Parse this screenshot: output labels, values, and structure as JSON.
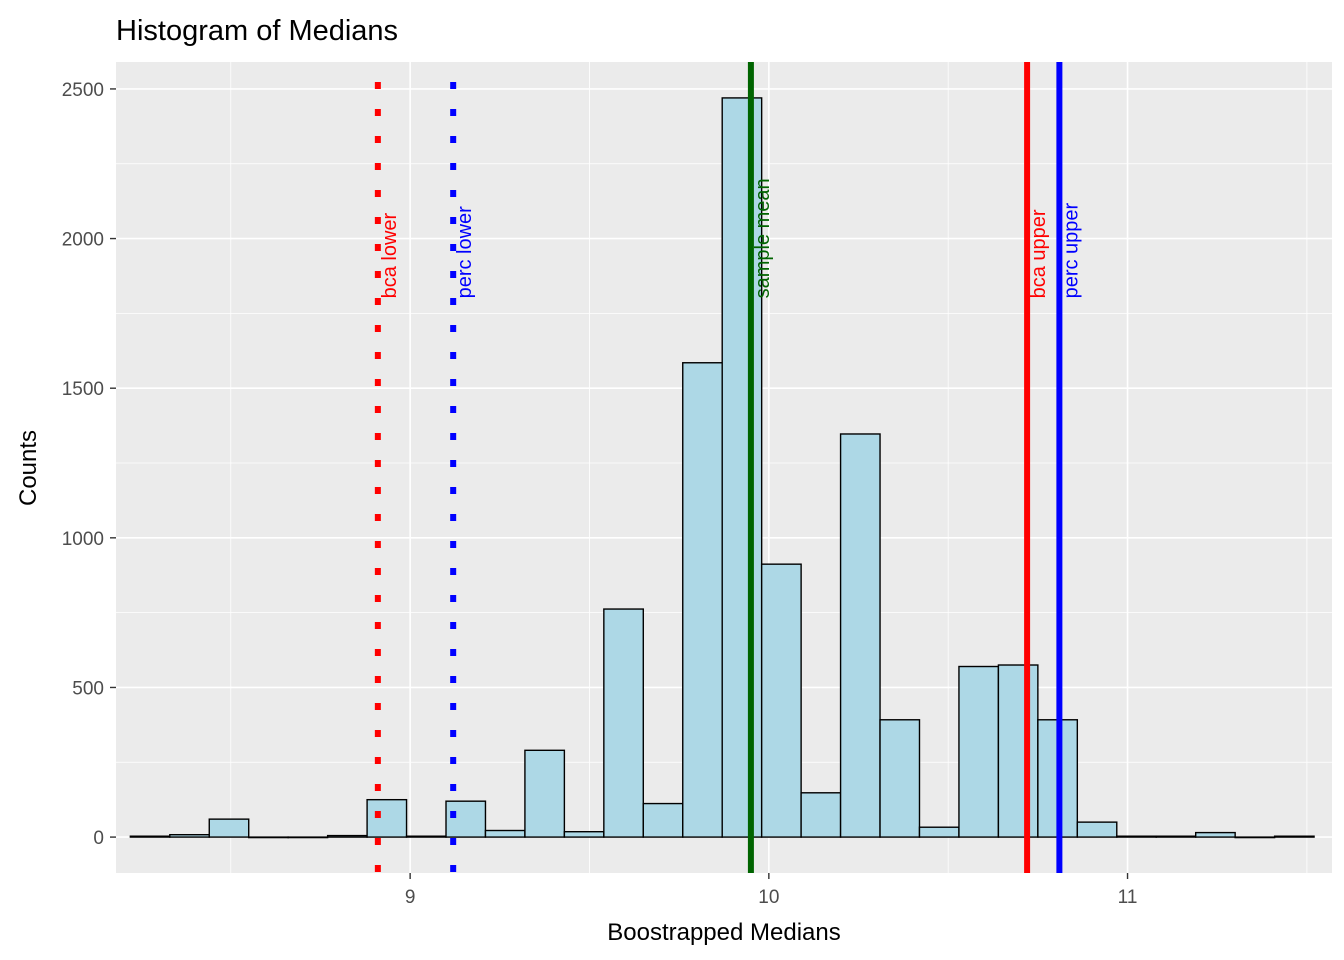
{
  "chart_data": {
    "type": "bar",
    "title": "Histogram of Medians",
    "xlabel": "Boostrapped Medians",
    "ylabel": "Counts",
    "xlim": [
      8.18,
      11.57
    ],
    "ylim": [
      -120,
      2590
    ],
    "x_ticks": [
      9,
      10,
      11
    ],
    "y_ticks": [
      0,
      500,
      1000,
      1500,
      2000,
      2500
    ],
    "grid": true,
    "bar_fill": "#add8e6",
    "bar_stroke": "#000000",
    "panel_background": "#ebebeb",
    "bins": [
      {
        "x0": 8.22,
        "x1": 8.33,
        "count": 3
      },
      {
        "x0": 8.33,
        "x1": 8.44,
        "count": 8
      },
      {
        "x0": 8.44,
        "x1": 8.55,
        "count": 60
      },
      {
        "x0": 8.55,
        "x1": 8.66,
        "count": 0
      },
      {
        "x0": 8.66,
        "x1": 8.77,
        "count": 0
      },
      {
        "x0": 8.77,
        "x1": 8.88,
        "count": 5
      },
      {
        "x0": 8.88,
        "x1": 8.99,
        "count": 125
      },
      {
        "x0": 8.99,
        "x1": 9.1,
        "count": 3
      },
      {
        "x0": 9.1,
        "x1": 9.21,
        "count": 120
      },
      {
        "x0": 9.21,
        "x1": 9.32,
        "count": 22
      },
      {
        "x0": 9.32,
        "x1": 9.43,
        "count": 290
      },
      {
        "x0": 9.43,
        "x1": 9.54,
        "count": 18
      },
      {
        "x0": 9.54,
        "x1": 9.65,
        "count": 762
      },
      {
        "x0": 9.65,
        "x1": 9.76,
        "count": 112
      },
      {
        "x0": 9.76,
        "x1": 9.87,
        "count": 1585
      },
      {
        "x0": 9.87,
        "x1": 9.98,
        "count": 2470
      },
      {
        "x0": 9.98,
        "x1": 10.09,
        "count": 912
      },
      {
        "x0": 10.09,
        "x1": 10.2,
        "count": 148
      },
      {
        "x0": 10.2,
        "x1": 10.31,
        "count": 1347
      },
      {
        "x0": 10.31,
        "x1": 10.42,
        "count": 392
      },
      {
        "x0": 10.42,
        "x1": 10.53,
        "count": 33
      },
      {
        "x0": 10.53,
        "x1": 10.64,
        "count": 570
      },
      {
        "x0": 10.64,
        "x1": 10.75,
        "count": 575
      },
      {
        "x0": 10.75,
        "x1": 10.86,
        "count": 392
      },
      {
        "x0": 10.86,
        "x1": 10.97,
        "count": 50
      },
      {
        "x0": 10.97,
        "x1": 11.08,
        "count": 3
      },
      {
        "x0": 11.08,
        "x1": 11.19,
        "count": 3
      },
      {
        "x0": 11.19,
        "x1": 11.3,
        "count": 15
      },
      {
        "x0": 11.3,
        "x1": 11.41,
        "count": 0
      },
      {
        "x0": 11.41,
        "x1": 11.52,
        "count": 3
      }
    ],
    "reference_lines": [
      {
        "label": "bca lower",
        "x": 8.91,
        "color": "#ff0000",
        "style": "dotted"
      },
      {
        "label": "perc lower",
        "x": 9.12,
        "color": "#0000ff",
        "style": "dotted"
      },
      {
        "label": "sample mean",
        "x": 9.95,
        "color": "#006400",
        "style": "solid"
      },
      {
        "label": "bca upper",
        "x": 10.72,
        "color": "#ff0000",
        "style": "solid"
      },
      {
        "label": "perc upper",
        "x": 10.81,
        "color": "#0000ff",
        "style": "solid"
      }
    ]
  }
}
